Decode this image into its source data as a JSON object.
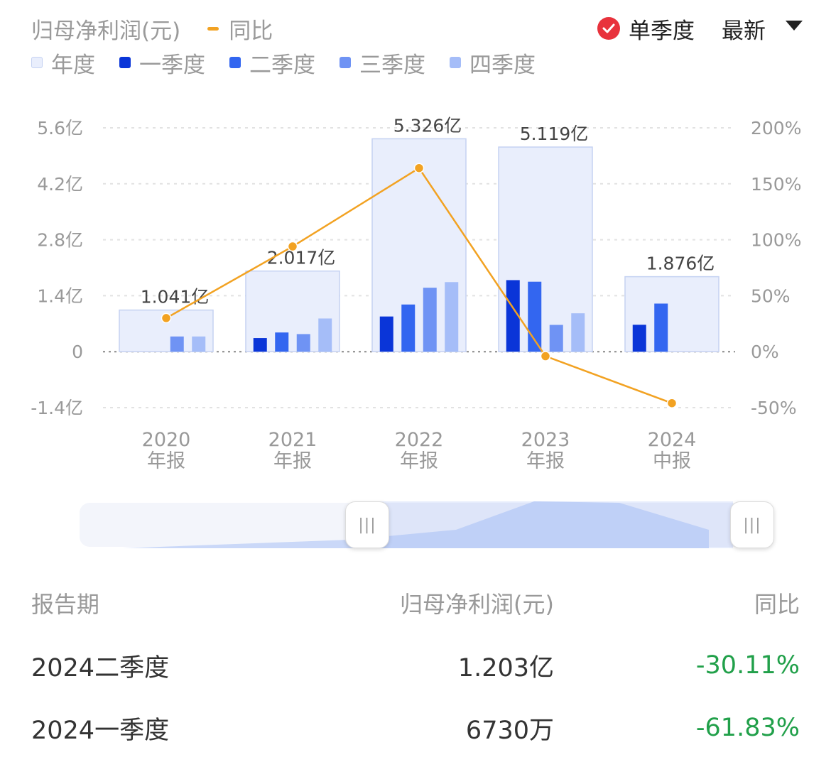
{
  "header": {
    "metric_label": "归母净利润(元)",
    "yoy_label": "同比",
    "single_quarter_label": "单季度",
    "latest_label": "最新"
  },
  "legend": [
    {
      "label": "年度",
      "color": "#e9eefc",
      "border": "#c5d2f2"
    },
    {
      "label": "一季度",
      "color": "#0a35d8",
      "border": "#0a35d8"
    },
    {
      "label": "二季度",
      "color": "#3366f0",
      "border": "#3366f0"
    },
    {
      "label": "三季度",
      "color": "#6f93f4",
      "border": "#6f93f4"
    },
    {
      "label": "四季度",
      "color": "#a5bdf8",
      "border": "#a5bdf8"
    }
  ],
  "chart_data": {
    "type": "bar",
    "categories": [
      {
        "year": "2020",
        "period": "年报"
      },
      {
        "year": "2021",
        "period": "年报"
      },
      {
        "year": "2022",
        "period": "年报"
      },
      {
        "year": "2023",
        "period": "年报"
      },
      {
        "year": "2024",
        "period": "中报"
      }
    ],
    "annual": [
      1.041,
      2.017,
      5.326,
      5.119,
      1.876
    ],
    "annual_labels": [
      "1.041亿",
      "2.017亿",
      "5.326亿",
      "5.119亿",
      "1.876亿"
    ],
    "quarters": [
      {
        "name": "一季度",
        "values": [
          null,
          0.34,
          0.88,
          1.79,
          0.673
        ]
      },
      {
        "name": "二季度",
        "values": [
          null,
          0.48,
          1.18,
          1.75,
          1.203
        ]
      },
      {
        "name": "三季度",
        "values": [
          0.38,
          0.44,
          1.6,
          0.67,
          null
        ]
      },
      {
        "name": "四季度",
        "values": [
          0.38,
          0.83,
          1.74,
          0.96,
          null
        ]
      }
    ],
    "yoy": [
      30,
      94,
      164,
      -4,
      -46
    ],
    "y_left": {
      "ticks": [
        "5.6亿",
        "4.2亿",
        "2.8亿",
        "1.4亿",
        "0",
        "-1.4亿"
      ],
      "min": -1.4,
      "max": 5.6
    },
    "y_right": {
      "ticks": [
        "200%",
        "150%",
        "100%",
        "50%",
        "0%",
        "-50%"
      ],
      "min": -50,
      "max": 200
    },
    "grid": true
  },
  "table": {
    "headers": [
      "报告期",
      "归母净利润(元)",
      "同比"
    ],
    "rows": [
      {
        "period": "2024二季度",
        "value": "1.203亿",
        "yoy": "-30.11%"
      },
      {
        "period": "2024一季度",
        "value": "6730万",
        "yoy": "-61.83%"
      }
    ]
  },
  "colors": {
    "yoy_line": "#f2a222",
    "positive": "#21a04a",
    "accent_red": "#e8323c"
  }
}
